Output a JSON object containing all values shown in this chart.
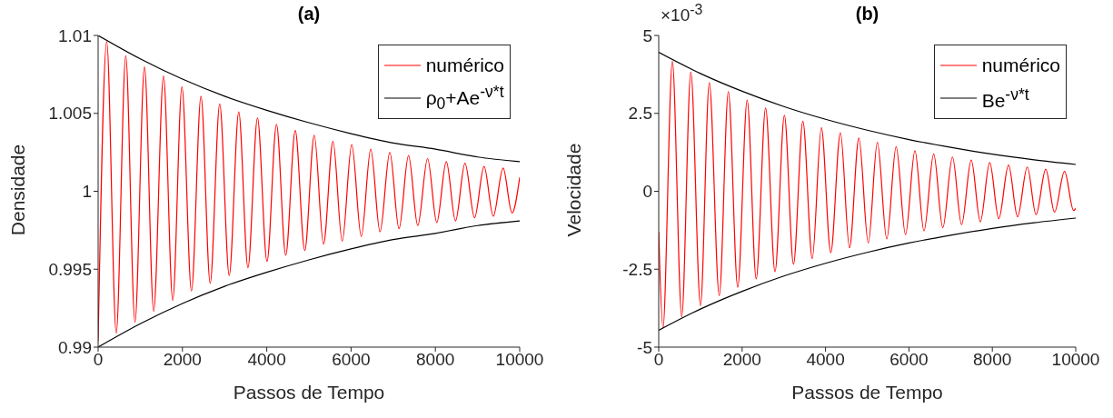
{
  "chart_data": [
    {
      "type": "line",
      "title": "(a)",
      "xlabel": "Passos de Tempo",
      "ylabel": "Densidade",
      "xlim": [
        0,
        10000
      ],
      "xticks": [
        0,
        2000,
        4000,
        6000,
        8000,
        10000
      ],
      "ylim": [
        0.99,
        1.01
      ],
      "yticks": [
        0.99,
        0.995,
        1,
        1.005,
        1.01
      ],
      "legend": "top right",
      "series": [
        {
          "name": "numérico",
          "color": "#ff0000",
          "x": [
            0,
            204,
            430,
            655,
            874,
            1100,
            1318,
            1551,
            1770,
            1988,
            2214,
            2440,
            2658,
            2884,
            3110,
            3336,
            3554,
            3780,
            4006,
            4231,
            4450,
            4676,
            4901,
            5127,
            5346,
            5571,
            5790,
            6016,
            6242,
            6467,
            6686,
            6919,
            7137,
            7363,
            7582,
            7815,
            8033,
            8259,
            8477,
            8703,
            8929,
            9155,
            9373,
            9606,
            9818,
            10000
          ],
          "values": [
            0.9904,
            1.0096,
            0.9909,
            1.0087,
            0.9916,
            1.008,
            0.9923,
            1.0074,
            0.993,
            1.0067,
            0.9936,
            1.0061,
            0.9941,
            1.0056,
            0.9946,
            1.0051,
            0.9951,
            1.0047,
            0.9955,
            1.0043,
            0.9959,
            1.0039,
            0.9962,
            1.0036,
            0.9966,
            1.0032,
            0.9968,
            1.003,
            0.9971,
            1.0027,
            0.9974,
            1.0025,
            0.9976,
            1.0023,
            0.9978,
            1.0021,
            0.998,
            1.0019,
            0.9981,
            1.0018,
            0.9983,
            1.0016,
            0.9984,
            1.0015,
            0.9986,
            1.0009
          ]
        },
        {
          "name": "ρ$_{0}$+Ae$^{-ν*t}$",
          "color": "#000000",
          "x": [
            0,
            1000,
            2000,
            3000,
            4000,
            5000,
            6000,
            7000,
            8000,
            9000,
            10000
          ],
          "values": [
            1.01,
            1.0085,
            1.0072,
            1.0061,
            1.0052,
            1.0044,
            1.0037,
            1.0031,
            1.0027,
            1.0022,
            1.0019
          ]
        },
        {
          "color": "#000000",
          "x": [
            0,
            1000,
            2000,
            3000,
            4000,
            5000,
            6000,
            7000,
            8000,
            9000,
            10000
          ],
          "values": [
            0.99,
            0.9915,
            0.9928,
            0.9939,
            0.9948,
            0.9956,
            0.9963,
            0.9969,
            0.9973,
            0.9978,
            0.9981
          ]
        }
      ]
    },
    {
      "type": "line",
      "title": "(b)",
      "xlabel": "Passos de Tempo",
      "ylabel": "Velocidade",
      "annotations": [
        "×10$^{-3}$"
      ],
      "xlim": [
        0,
        10000
      ],
      "xticks": [
        0,
        2000,
        4000,
        6000,
        8000,
        10000
      ],
      "ylim": [
        -5,
        5
      ],
      "yticks": [
        -5,
        -2.5,
        0,
        2.5,
        5
      ],
      "legend": "top right",
      "series": [
        {
          "name": "numérico",
          "color": "#ff0000",
          "x": [
            0,
            102,
            327,
            552,
            770,
            1002,
            1213,
            1452,
            1670,
            1895,
            2121,
            2338,
            2563,
            2789,
            3014,
            3232,
            3457,
            3682,
            3900,
            4125,
            4357,
            4575,
            4800,
            5025,
            5243,
            5468,
            5693,
            5918,
            6144,
            6361,
            6594,
            6812,
            7044,
            7262,
            7494,
            7712,
            7937,
            8155,
            8388,
            8605,
            8838,
            9048,
            9281,
            9491,
            9731,
            9949,
            10000
          ],
          "values": [
            -1.3,
            -4.39,
            4.17,
            -4.03,
            3.83,
            -3.67,
            3.48,
            -3.35,
            3.2,
            -3.08,
            2.93,
            -2.81,
            2.67,
            -2.58,
            2.44,
            -2.34,
            2.25,
            -2.16,
            2.04,
            -1.97,
            1.88,
            -1.81,
            1.71,
            -1.66,
            1.57,
            -1.53,
            1.43,
            -1.39,
            1.3,
            -1.27,
            1.2,
            -1.17,
            1.1,
            -1.07,
            1,
            -0.98,
            0.92,
            -0.88,
            0.84,
            -0.82,
            0.78,
            -0.75,
            0.71,
            -0.67,
            0.64,
            -0.62,
            -0.55
          ]
        },
        {
          "name": "Be$^{-ν*t}$",
          "color": "#000000",
          "x": [
            0,
            1000,
            2000,
            3000,
            4000,
            5000,
            6000,
            7000,
            8000,
            9000,
            10000
          ],
          "values": [
            4.46,
            3.78,
            3.21,
            2.72,
            2.31,
            1.96,
            1.66,
            1.41,
            1.19,
            1.01,
            0.86
          ]
        },
        {
          "color": "#000000",
          "x": [
            0,
            1000,
            2000,
            3000,
            4000,
            5000,
            6000,
            7000,
            8000,
            9000,
            10000
          ],
          "values": [
            -4.46,
            -3.78,
            -3.21,
            -2.72,
            -2.31,
            -1.96,
            -1.66,
            -1.41,
            -1.19,
            -1.01,
            -0.86
          ]
        }
      ]
    }
  ]
}
